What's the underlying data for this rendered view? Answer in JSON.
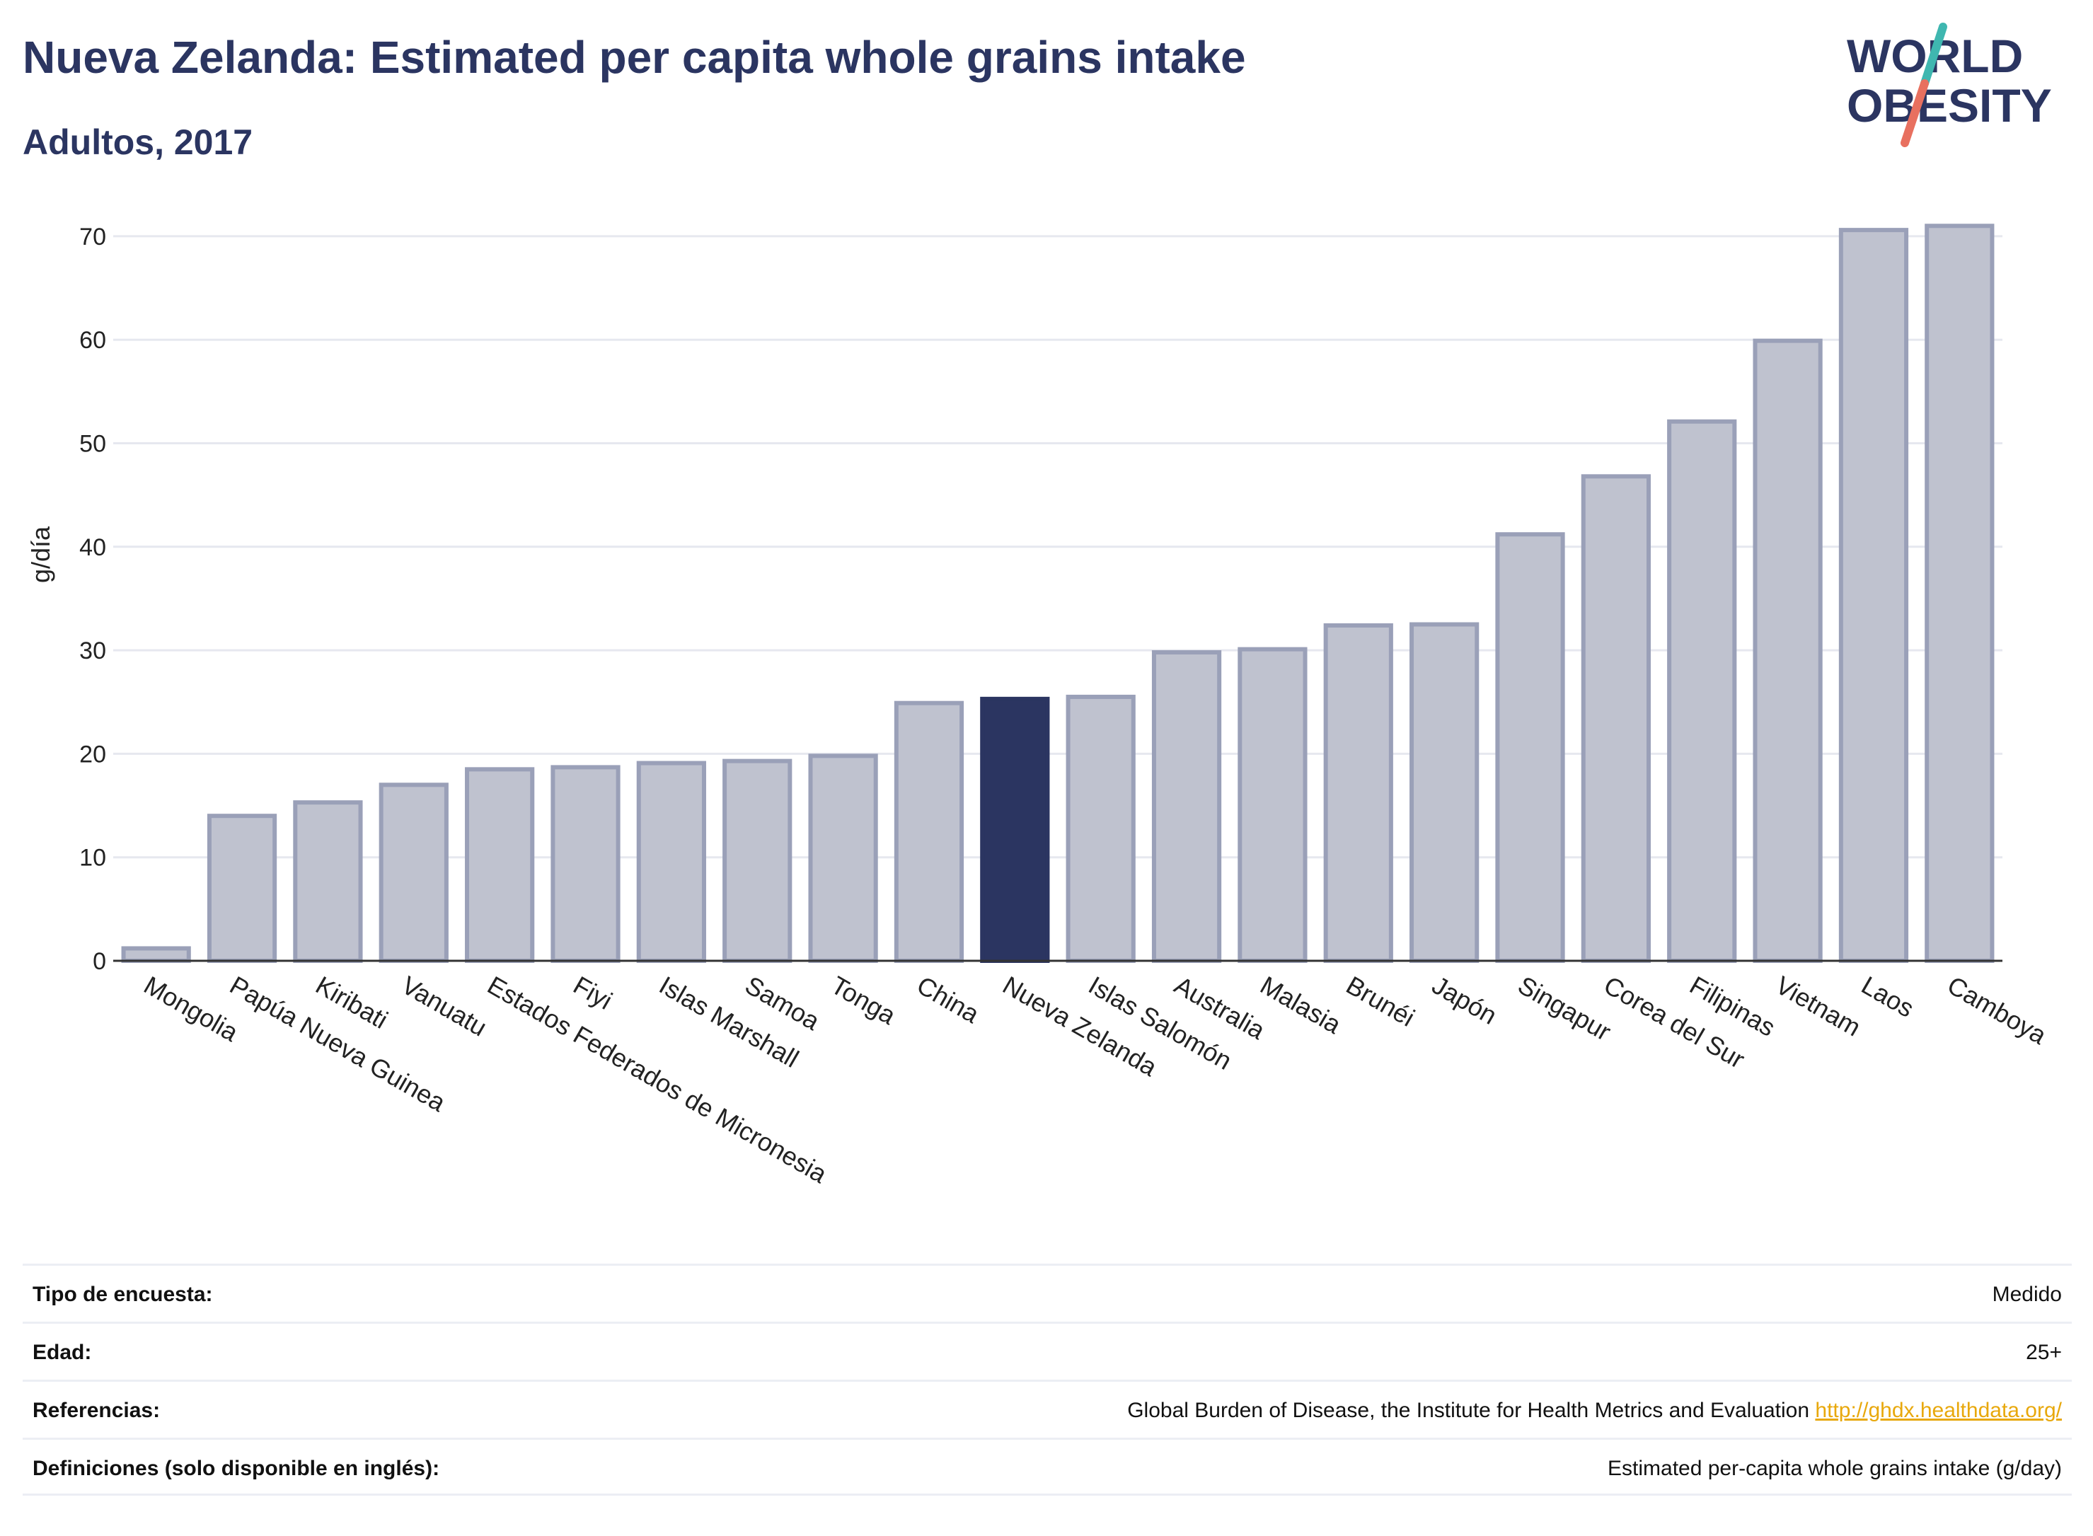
{
  "header": {
    "title": "Nueva Zelanda: Estimated per capita whole grains intake",
    "subtitle": "Adultos, 2017"
  },
  "logo": {
    "line1": "WORLD",
    "line2": "OBESITY",
    "slash_colors": [
      "#3fb7b0",
      "#e8705f"
    ],
    "text_color": "#2b3561"
  },
  "colors": {
    "highlight": "#2b3561",
    "bar": "#bfc2cf",
    "bar_edge": "#9aa0b8",
    "link": "#e8a80c"
  },
  "chart_data": {
    "type": "bar",
    "title": "",
    "xlabel": "",
    "ylabel": "g/día",
    "ylim": [
      0,
      73
    ],
    "yticks": [
      0,
      10,
      20,
      30,
      40,
      50,
      60,
      70
    ],
    "grid": true,
    "highlight": "Nueva Zelanda",
    "categories": [
      "Mongolia",
      "Papúa Nueva Guinea",
      "Kiribati",
      "Vanuatu",
      "Estados Federados de Micronesia",
      "Fiyi",
      "Islas Marshall",
      "Samoa",
      "Tonga",
      "China",
      "Nueva Zelanda",
      "Islas Salomón",
      "Australia",
      "Malasia",
      "Brunéi",
      "Japón",
      "Singapur",
      "Corea del Sur",
      "Filipinas",
      "Vietnam",
      "Laos",
      "Camboya"
    ],
    "values": [
      1.2,
      14.0,
      15.3,
      17.0,
      18.5,
      18.7,
      19.1,
      19.3,
      19.8,
      24.9,
      25.3,
      25.5,
      29.8,
      30.1,
      32.4,
      32.5,
      41.2,
      46.8,
      52.1,
      59.9,
      70.6,
      71.0
    ]
  },
  "info": {
    "rows": [
      {
        "label": "Tipo de encuesta:",
        "value": "Medido"
      },
      {
        "label": "Edad:",
        "value": "25+"
      },
      {
        "label": "Referencias:",
        "value": "Global Burden of Disease, the Institute for Health Metrics and Evaluation",
        "link": "http://ghdx.healthdata.org/"
      },
      {
        "label": "Definiciones (solo disponible en inglés):",
        "value": "Estimated per-capita whole grains intake (g/day)"
      }
    ]
  }
}
